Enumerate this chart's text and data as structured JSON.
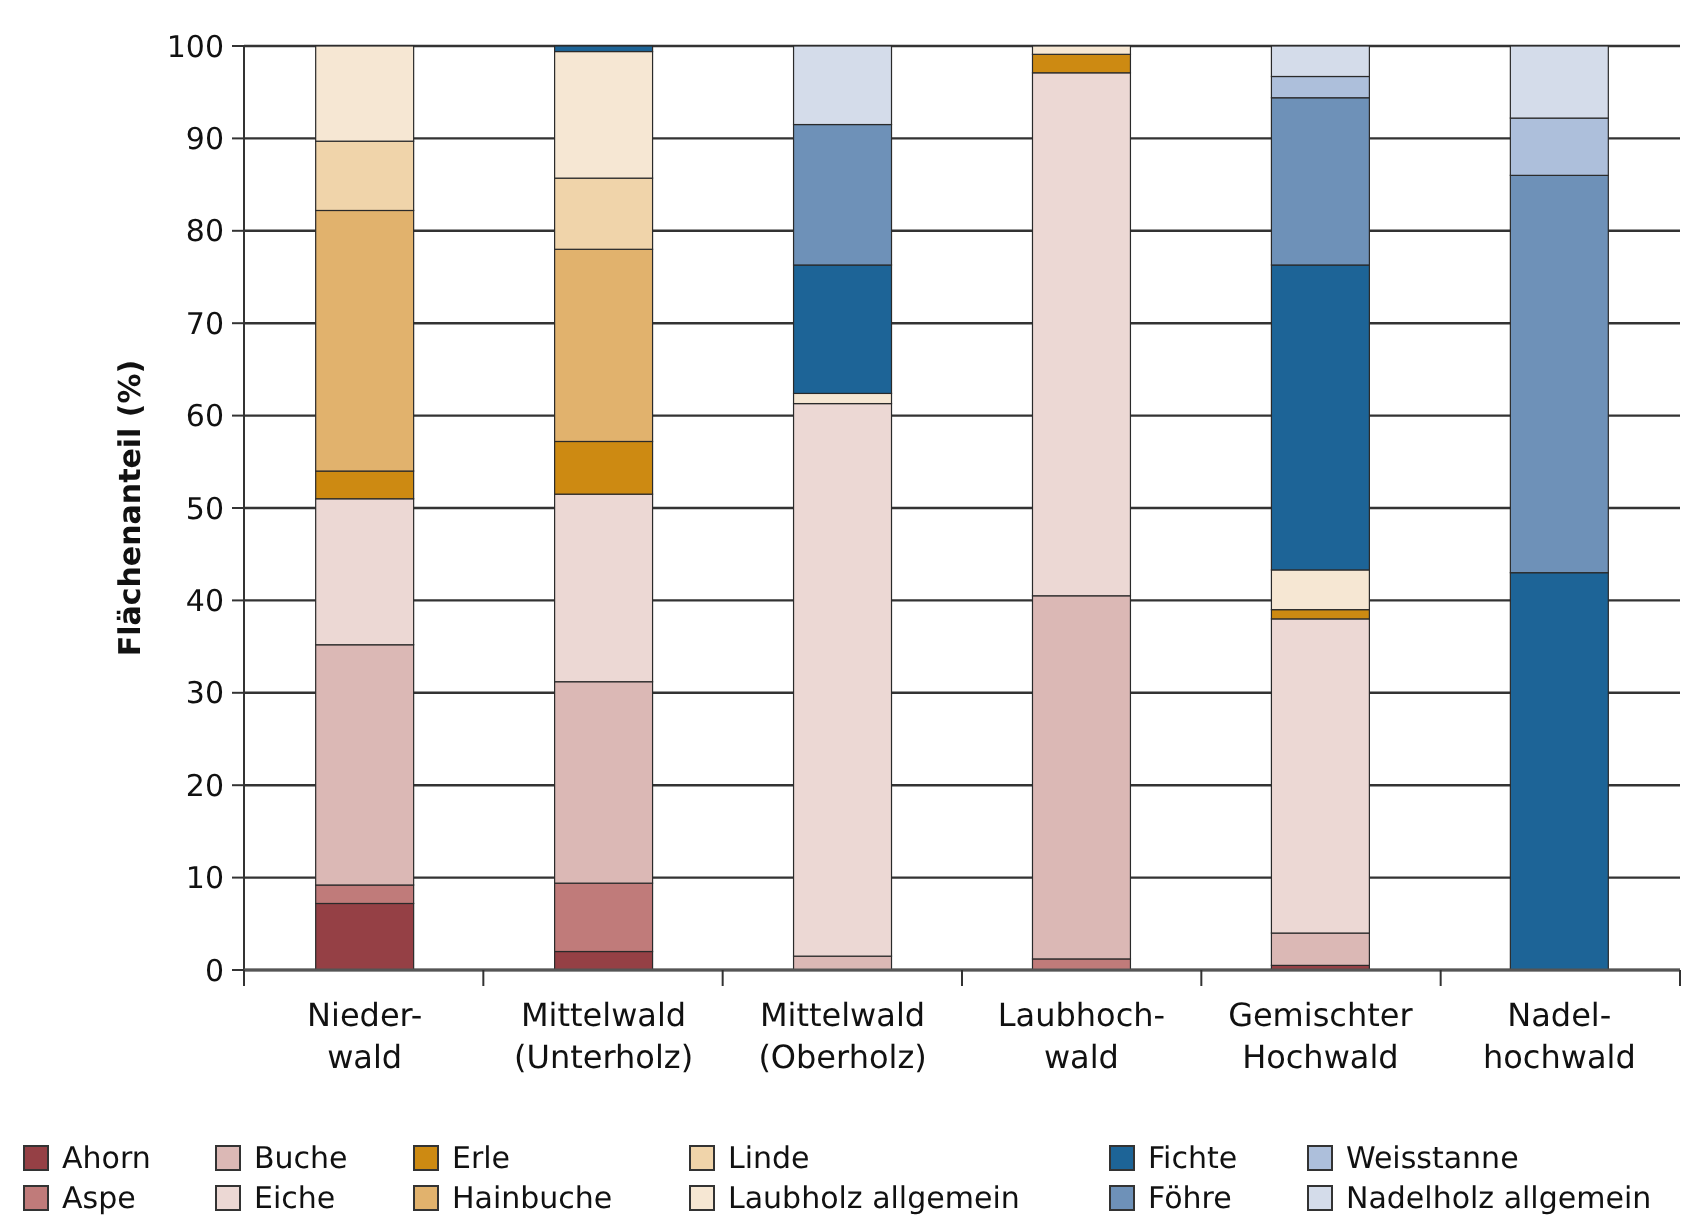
{
  "chart_data": {
    "type": "bar",
    "stacked": true,
    "ylabel": "Flächenanteil (%)",
    "categories": [
      "Nieder-\nwald",
      "Mittelwald\n(Unterholz)",
      "Mittelwald\n(Oberholz)",
      "Laubhoch-\nwald",
      "Gemischter\nHochwald",
      "Nadel-\nhochwald"
    ],
    "series": [
      {
        "name": "Ahorn",
        "color": "#954045",
        "values": [
          7.2,
          2,
          0,
          0,
          0.5,
          0
        ]
      },
      {
        "name": "Aspe",
        "color": "#c07b7a",
        "values": [
          2,
          7.4,
          0,
          1.2,
          0,
          0
        ]
      },
      {
        "name": "Buche",
        "color": "#dbb8b5",
        "values": [
          26,
          21.8,
          1.5,
          39.3,
          3.5,
          0
        ]
      },
      {
        "name": "Eiche",
        "color": "#ecd8d4",
        "values": [
          15.8,
          20.3,
          59.8,
          56.6,
          34,
          0
        ]
      },
      {
        "name": "Erle",
        "color": "#cd8a12",
        "values": [
          3,
          5.7,
          0,
          2,
          1,
          0
        ]
      },
      {
        "name": "Hainbuche",
        "color": "#e1b26d",
        "values": [
          28.2,
          20.8,
          0,
          0,
          0,
          0
        ]
      },
      {
        "name": "Linde",
        "color": "#f0d4aa",
        "values": [
          7.5,
          7.7,
          0,
          0,
          0,
          0
        ]
      },
      {
        "name": "Laubholz allgemein",
        "color": "#f6e7d3",
        "values": [
          10.3,
          13.7,
          1.1,
          0.9,
          4.3,
          0
        ]
      },
      {
        "name": "Fichte",
        "color": "#1d6497",
        "values": [
          0,
          0.6,
          13.9,
          0,
          33,
          43
        ]
      },
      {
        "name": "Föhre",
        "color": "#6e91b8",
        "values": [
          0,
          0,
          15.2,
          0,
          18.1,
          43
        ]
      },
      {
        "name": "Weisstanne",
        "color": "#adbfdb",
        "values": [
          0,
          0,
          0,
          0,
          2.3,
          6.2
        ]
      },
      {
        "name": "Nadelholz allgemein",
        "color": "#d4dcea",
        "values": [
          0,
          0,
          8.5,
          0,
          3.3,
          7.8
        ]
      }
    ],
    "ylim": [
      0,
      100
    ],
    "yticks": [
      0,
      10,
      20,
      30,
      40,
      50,
      60,
      70,
      80,
      90,
      100
    ],
    "grid": "y",
    "legend": "bottom"
  }
}
